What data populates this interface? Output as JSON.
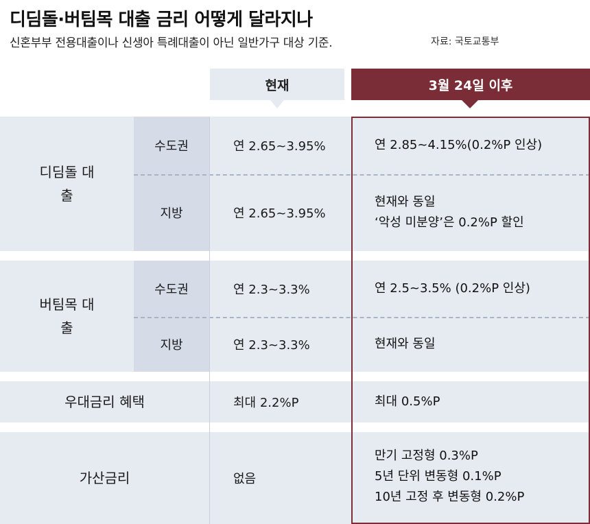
{
  "title": "디딤돌·버팀목 대출 금리 어떻게 달라지나",
  "subtitle": "신혼부부 전용대출이나 신생아 특례대출이 아닌 일반가구 대상 기준.",
  "source": "자료: 국토교통부",
  "headers": {
    "current": "현재",
    "new": "3월 24일 이후"
  },
  "rows": {
    "didimdol": {
      "group": "디딤돌 대출",
      "capital": {
        "region": "수도권",
        "current": "연 2.65~3.95%",
        "new_line1": "연 2.85~4.15%(0.2%P 인상)"
      },
      "local": {
        "region": "지방",
        "current": "연 2.65~3.95%",
        "new_line1": "현재와 동일",
        "new_line2": "‘악성 미분양’은 0.2%P 할인"
      }
    },
    "beotimmok": {
      "group": "버팀목 대출",
      "capital": {
        "region": "수도권",
        "current": "연 2.3~3.3%",
        "new_line1": "연 2.5~3.5% (0.2%P 인상)"
      },
      "local": {
        "region": "지방",
        "current": "연 2.3~3.3%",
        "new_line1": "현재와 동일"
      }
    },
    "preferential": {
      "label": "우대금리 혜택",
      "current": "최대 2.2%P",
      "new_line1": "최대 0.5%P"
    },
    "surcharge": {
      "label": "가산금리",
      "current": "없음",
      "new_line1": "만기 고정형 0.3%P",
      "new_line2": "5년 단위 변동형 0.1%P",
      "new_line3": "10년 고정 후 변동형 0.2%P"
    }
  },
  "colors": {
    "accent": "#7a2d36",
    "band": "#e6eaf1",
    "region": "#d5dce8"
  }
}
